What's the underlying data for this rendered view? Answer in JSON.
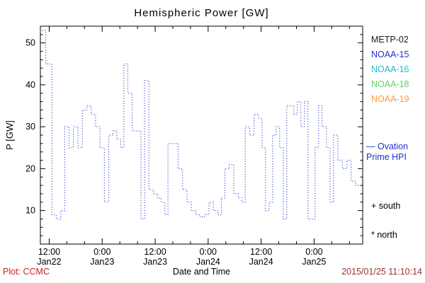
{
  "chart": {
    "title": "Hemispheric Power [GW]",
    "ylabel": "P [GW]",
    "xlabel": "Date and Time"
  },
  "legend": {
    "items": [
      {
        "label": "METP-02",
        "color": "#1a1a1a"
      },
      {
        "label": "NOAA-15",
        "color": "#2233cc"
      },
      {
        "label": "NOAA-16",
        "color": "#22bbcc"
      },
      {
        "label": "NOAA-18",
        "color": "#66cc66"
      },
      {
        "label": "NOAA-19",
        "color": "#ff9944"
      }
    ]
  },
  "annotations": {
    "ovation_line1": "— Ovation",
    "ovation_line2": "Prime HPI",
    "ovation_color": "#2233cc",
    "south_marker": "+ south",
    "north_marker": "* north"
  },
  "footer": {
    "plot_credit": "Plot: CCMC",
    "plot_credit_color": "#cc2222",
    "timestamp": "2015/01/25 11:10:14",
    "timestamp_color": "#993333"
  },
  "chart_data": {
    "type": "line",
    "line_style": "dotted-step",
    "title": "Hemispheric Power [GW]",
    "xlabel": "Date and Time",
    "ylabel": "P [GW]",
    "x_unit": "hours since 2015-01-22 00:00",
    "xlim": [
      10,
      83
    ],
    "x_end": 82.5,
    "ylim": [
      2,
      54
    ],
    "yticks": [
      10,
      20,
      30,
      40,
      50
    ],
    "xticks": [
      {
        "t": 12,
        "time": "12:00",
        "date": "Jan22"
      },
      {
        "t": 24,
        "time": "0:00",
        "date": "Jan23"
      },
      {
        "t": 36,
        "time": "12:00",
        "date": "Jan23"
      },
      {
        "t": 48,
        "time": "0:00",
        "date": "Jan24"
      },
      {
        "t": 60,
        "time": "12:00",
        "date": "Jan24"
      },
      {
        "t": 72,
        "time": "0:00",
        "date": "Jan25"
      }
    ],
    "frame_color": "#000000",
    "grid": false,
    "legend_position": "right",
    "series": [
      {
        "name": "Ovation Prime HPI (NOAA-15)",
        "color": "#2233cc",
        "points": [
          [
            10.4,
            53
          ],
          [
            11.2,
            45
          ],
          [
            12.6,
            9
          ],
          [
            13.6,
            8
          ],
          [
            14.6,
            10
          ],
          [
            15.5,
            30
          ],
          [
            16.5,
            25
          ],
          [
            17.5,
            30
          ],
          [
            18.5,
            25
          ],
          [
            19.5,
            34
          ],
          [
            20.5,
            35
          ],
          [
            21.5,
            33
          ],
          [
            22.5,
            30
          ],
          [
            23.5,
            25
          ],
          [
            24.5,
            12
          ],
          [
            25.5,
            28
          ],
          [
            26.5,
            29
          ],
          [
            27.3,
            27
          ],
          [
            28.2,
            25
          ],
          [
            28.9,
            45
          ],
          [
            29.8,
            38
          ],
          [
            30.8,
            29
          ],
          [
            31.8,
            29
          ],
          [
            32.8,
            8
          ],
          [
            33.6,
            41
          ],
          [
            34.6,
            15
          ],
          [
            35.6,
            14
          ],
          [
            36.6,
            13
          ],
          [
            37.4,
            12
          ],
          [
            38.2,
            9
          ],
          [
            38.9,
            26
          ],
          [
            40.0,
            26
          ],
          [
            41.2,
            20
          ],
          [
            42.2,
            15
          ],
          [
            43.2,
            12
          ],
          [
            44.2,
            10
          ],
          [
            45.2,
            9
          ],
          [
            46.2,
            8.5
          ],
          [
            47.2,
            9
          ],
          [
            48.2,
            12
          ],
          [
            49.2,
            10
          ],
          [
            50.2,
            9
          ],
          [
            51.0,
            13
          ],
          [
            51.8,
            20
          ],
          [
            52.8,
            21
          ],
          [
            53.8,
            14
          ],
          [
            54.8,
            13
          ],
          [
            55.6,
            12
          ],
          [
            56.4,
            30
          ],
          [
            57.4,
            28
          ],
          [
            58.4,
            33
          ],
          [
            59.4,
            32
          ],
          [
            60.2,
            25
          ],
          [
            61.0,
            10
          ],
          [
            61.8,
            12
          ],
          [
            62.6,
            28
          ],
          [
            63.4,
            30
          ],
          [
            64.2,
            25
          ],
          [
            65.0,
            8
          ],
          [
            65.8,
            35
          ],
          [
            66.6,
            35
          ],
          [
            67.4,
            33
          ],
          [
            68.2,
            36
          ],
          [
            69.0,
            30
          ],
          [
            69.8,
            36
          ],
          [
            70.6,
            8
          ],
          [
            71.4,
            8
          ],
          [
            72.2,
            25
          ],
          [
            73.0,
            35
          ],
          [
            73.8,
            30
          ],
          [
            74.8,
            25
          ],
          [
            75.6,
            12
          ],
          [
            76.4,
            28
          ],
          [
            77.4,
            22
          ],
          [
            78.4,
            20
          ],
          [
            79.4,
            22
          ],
          [
            80.4,
            17
          ],
          [
            81.4,
            16
          ]
        ]
      }
    ]
  }
}
